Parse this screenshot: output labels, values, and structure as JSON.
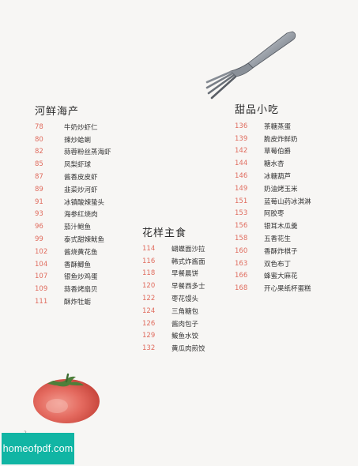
{
  "sections": {
    "seafood": {
      "title": "河鲜海产",
      "items": [
        {
          "page": "78",
          "name": "牛奶炒虾仁"
        },
        {
          "page": "80",
          "name": "辣炒蛤蜊"
        },
        {
          "page": "82",
          "name": "蒜蓉粉丝蒸海虾"
        },
        {
          "page": "85",
          "name": "凤梨虾球"
        },
        {
          "page": "87",
          "name": "酱香皮皮虾"
        },
        {
          "page": "89",
          "name": "韭菜炒河虾"
        },
        {
          "page": "91",
          "name": "冰镇酸辣蛰头"
        },
        {
          "page": "93",
          "name": "海参红烧肉"
        },
        {
          "page": "96",
          "name": "茄汁鲍鱼"
        },
        {
          "page": "99",
          "name": "泰式甜辣鱿鱼"
        },
        {
          "page": "102",
          "name": "酱烧黄花鱼"
        },
        {
          "page": "104",
          "name": "香酥鲫鱼"
        },
        {
          "page": "107",
          "name": "银鱼炒鸡蛋"
        },
        {
          "page": "109",
          "name": "蒜香烤扇贝"
        },
        {
          "page": "111",
          "name": "酥炸牡蛎"
        }
      ]
    },
    "staple": {
      "title": "花样主食",
      "items": [
        {
          "page": "114",
          "name": "蝴蝶面沙拉"
        },
        {
          "page": "116",
          "name": "韩式炸酱面"
        },
        {
          "page": "118",
          "name": "早餐晨饼"
        },
        {
          "page": "120",
          "name": "早餐西多士"
        },
        {
          "page": "122",
          "name": "枣花馒头"
        },
        {
          "page": "124",
          "name": "三角糖包"
        },
        {
          "page": "126",
          "name": "酱肉包子"
        },
        {
          "page": "129",
          "name": "鲅鱼水饺"
        },
        {
          "page": "132",
          "name": "黄瓜肉煎饺"
        }
      ]
    },
    "dessert": {
      "title": "甜品小吃",
      "items": [
        {
          "page": "136",
          "name": "茶糖蒸蛋"
        },
        {
          "page": "139",
          "name": "脆皮炸鲜奶"
        },
        {
          "page": "142",
          "name": "草莓伯爵"
        },
        {
          "page": "144",
          "name": "糖水杏"
        },
        {
          "page": "146",
          "name": "冰糖葫芦"
        },
        {
          "page": "149",
          "name": "奶油烤玉米"
        },
        {
          "page": "151",
          "name": "蓝莓山药冰淇淋"
        },
        {
          "page": "153",
          "name": "阿胶枣"
        },
        {
          "page": "156",
          "name": "银耳木瓜羹"
        },
        {
          "page": "158",
          "name": "五香花生"
        },
        {
          "page": "160",
          "name": "香酥炸棋子"
        },
        {
          "page": "163",
          "name": "双色布丁"
        },
        {
          "page": "166",
          "name": "蜂蜜大麻花"
        },
        {
          "page": "168",
          "name": "开心果纸杯蛋糕"
        }
      ]
    }
  },
  "page_number": "2",
  "watermark": "homeofpdf.com",
  "colors": {
    "page_number_color": "#e06c5e",
    "watermark_bg": "#11b5a4",
    "background": "#f7f6f4"
  },
  "icons": [
    "fork-icon",
    "tomato-icon"
  ]
}
